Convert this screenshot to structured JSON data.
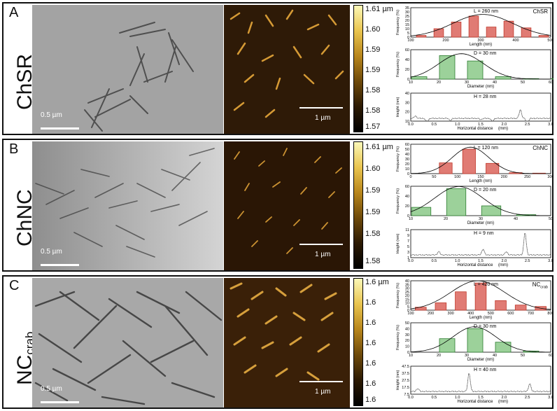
{
  "panels": [
    {
      "letter": "A",
      "sample": "ChSR",
      "sample_sub": "",
      "tem_scale": "0.5 µm",
      "afm_scale": "1 µm",
      "colorbar_ticks": [
        "1.61 µm",
        "1.60",
        "1.59",
        "1.59",
        "1.58",
        "1.58",
        "1.57"
      ],
      "length": {
        "label": "L = 260 nm",
        "tag": "ChSR",
        "tag_sub": "",
        "ylabel": "Frequency (%)",
        "xlabel": "Length (nm)",
        "xticks": [
          100,
          200,
          300,
          400,
          500
        ],
        "yticks": [
          0,
          5,
          10,
          15,
          20,
          25,
          30,
          35
        ],
        "bins": [
          130,
          180,
          230,
          280,
          330,
          380,
          430,
          480,
          530
        ],
        "values": [
          2,
          10,
          18,
          25,
          12,
          19,
          11,
          2,
          1
        ]
      },
      "diameter": {
        "label": "D = 30 nm",
        "ylabel": "Frequency (%)",
        "xlabel": "Diameter (nm)",
        "xticks": [
          10,
          20,
          30,
          40,
          50,
          60
        ],
        "yticks": [
          0,
          20,
          40,
          60
        ],
        "bins": [
          13,
          23,
          33,
          43,
          53,
          63
        ],
        "values": [
          5,
          48,
          37,
          5,
          1,
          1
        ]
      },
      "height": {
        "label": "H = 28 nm",
        "ylabel": "Height (nm)",
        "xlabel": "Horizontal distance",
        "unit": "(mm)",
        "xticks": [
          0.0,
          0.5,
          1.0,
          1.5,
          2.0,
          2.5,
          3.0
        ],
        "yticks": [
          10,
          20,
          30,
          40
        ],
        "peaks": [
          [
            0.1,
            15
          ],
          [
            0.35,
            8
          ],
          [
            0.85,
            10
          ],
          [
            1.5,
            11
          ],
          [
            1.75,
            9
          ],
          [
            2.35,
            22
          ],
          [
            2.5,
            6
          ]
        ]
      }
    },
    {
      "letter": "B",
      "sample": "ChNC",
      "sample_sub": "",
      "tem_scale": "0.5 µm",
      "afm_scale": "1 µm",
      "colorbar_ticks": [
        "1.61 µm",
        "1.60",
        "1.59",
        "1.59",
        "1.58",
        "1.58"
      ],
      "length": {
        "label": "L = 120 nm",
        "tag": "ChNC",
        "tag_sub": "",
        "ylabel": "Frequency (%)",
        "xlabel": "Length (nm)",
        "xticks": [
          0,
          50,
          100,
          150,
          200,
          250,
          300
        ],
        "yticks": [
          0,
          10,
          20,
          30,
          40,
          50,
          60
        ],
        "bins": [
          75,
          125,
          175,
          225,
          275
        ],
        "values": [
          22,
          50,
          21,
          2,
          1
        ]
      },
      "diameter": {
        "label": "D = 20 nm",
        "ylabel": "Frequency (%)",
        "xlabel": "Diameter (nm)",
        "xticks": [
          10,
          20,
          30,
          40,
          50
        ],
        "yticks": [
          0,
          20,
          40,
          60
        ],
        "bins": [
          13,
          23,
          33,
          43
        ],
        "values": [
          17,
          55,
          20,
          2
        ]
      },
      "height": {
        "label": "H = 9 nm",
        "ylabel": "Height (nm)",
        "xlabel": "Horizontal distance",
        "unit": "(mm)",
        "xticks": [
          0.0,
          0.5,
          1.0,
          1.5,
          2.0,
          2.5,
          3.0
        ],
        "yticks": [
          1,
          3,
          5,
          7,
          9,
          11
        ],
        "peaks": [
          [
            0.6,
            3
          ],
          [
            1.55,
            4
          ],
          [
            2.05,
            3
          ],
          [
            2.45,
            10
          ]
        ]
      }
    },
    {
      "letter": "C",
      "sample": "NC",
      "sample_sub": "crab",
      "tem_scale": "0.5 µm",
      "afm_scale": "1 µm",
      "colorbar_ticks": [
        "1.6 µm",
        "1.6",
        "1.6",
        "1.6",
        "1.6",
        "1.6",
        "1.6"
      ],
      "length": {
        "label": "L = 420 nm",
        "tag": "NC",
        "tag_sub": "crab",
        "ylabel": "Frequency (%)",
        "xlabel": "Length (nm)",
        "xticks": [
          100,
          200,
          300,
          400,
          500,
          600,
          700,
          800
        ],
        "yticks": [
          0,
          5,
          10,
          15,
          20,
          25,
          30,
          35,
          40
        ],
        "bins": [
          150,
          250,
          350,
          450,
          550,
          650,
          750
        ],
        "values": [
          4,
          10,
          25,
          37,
          13,
          7,
          5
        ]
      },
      "diameter": {
        "label": "D = 30 nm",
        "ylabel": "Frequency (%)",
        "xlabel": "Diameter (nm)",
        "xticks": [
          10,
          20,
          30,
          40,
          50,
          60
        ],
        "yticks": [
          0,
          10,
          20,
          30,
          40,
          50
        ],
        "bins": [
          23,
          33,
          43,
          53
        ],
        "values": [
          23,
          40,
          17,
          2
        ]
      },
      "height": {
        "label": "H = 40 nm",
        "ylabel": "Height (nm)",
        "xlabel": "Horizontal distance",
        "unit": "(mm)",
        "xticks": [
          0.0,
          0.5,
          1.0,
          1.5,
          2.0,
          2.5,
          3.0
        ],
        "yticks": [
          7.5,
          17.5,
          27.5,
          37.5,
          47.5
        ],
        "peaks": [
          [
            0.15,
            15
          ],
          [
            1.25,
            38
          ],
          [
            2.55,
            22
          ]
        ]
      }
    }
  ],
  "colors": {
    "length_bar": "#e07b74",
    "length_edge": "#c0392b",
    "diameter_bar": "#9cd19a",
    "diameter_edge": "#2e7d32",
    "afm_fiber": "#e8a83a"
  }
}
